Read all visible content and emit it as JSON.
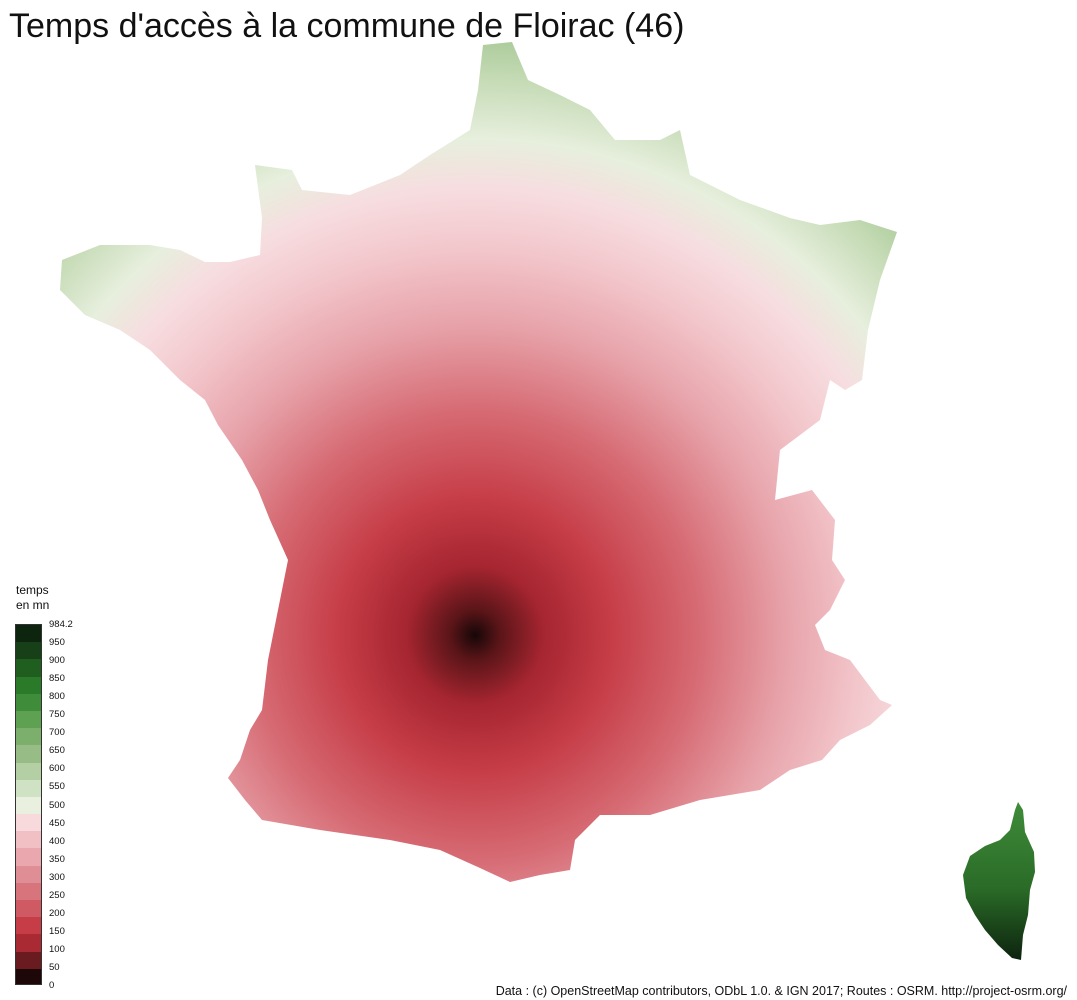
{
  "title": "Temps d'accès à la commune de Floirac (46)",
  "legend": {
    "title": "temps\nen mn",
    "breaks": [
      "984.2",
      "950",
      "900",
      "850",
      "800",
      "750",
      "700",
      "650",
      "600",
      "550",
      "500",
      "450",
      "400",
      "350",
      "300",
      "250",
      "200",
      "150",
      "100",
      "50",
      "0"
    ],
    "colors": [
      "#0d240f",
      "#173f18",
      "#1f5e1f",
      "#2a7a2a",
      "#3f8c3a",
      "#5ea152",
      "#7caf6c",
      "#97bc86",
      "#b3cfa3",
      "#cfe2c3",
      "#e9f0e0",
      "#f8dadd",
      "#f1c0c5",
      "#eaa8ae",
      "#e08e96",
      "#d8747c",
      "#cf5a63",
      "#c63d47",
      "#a92a33",
      "#6a1b1f",
      "#1d0708"
    ]
  },
  "credit": "Data : (c) OpenStreetMap contributors, ODbL 1.0. & IGN 2017; Routes : OSRM. http://project-osrm.org/"
}
